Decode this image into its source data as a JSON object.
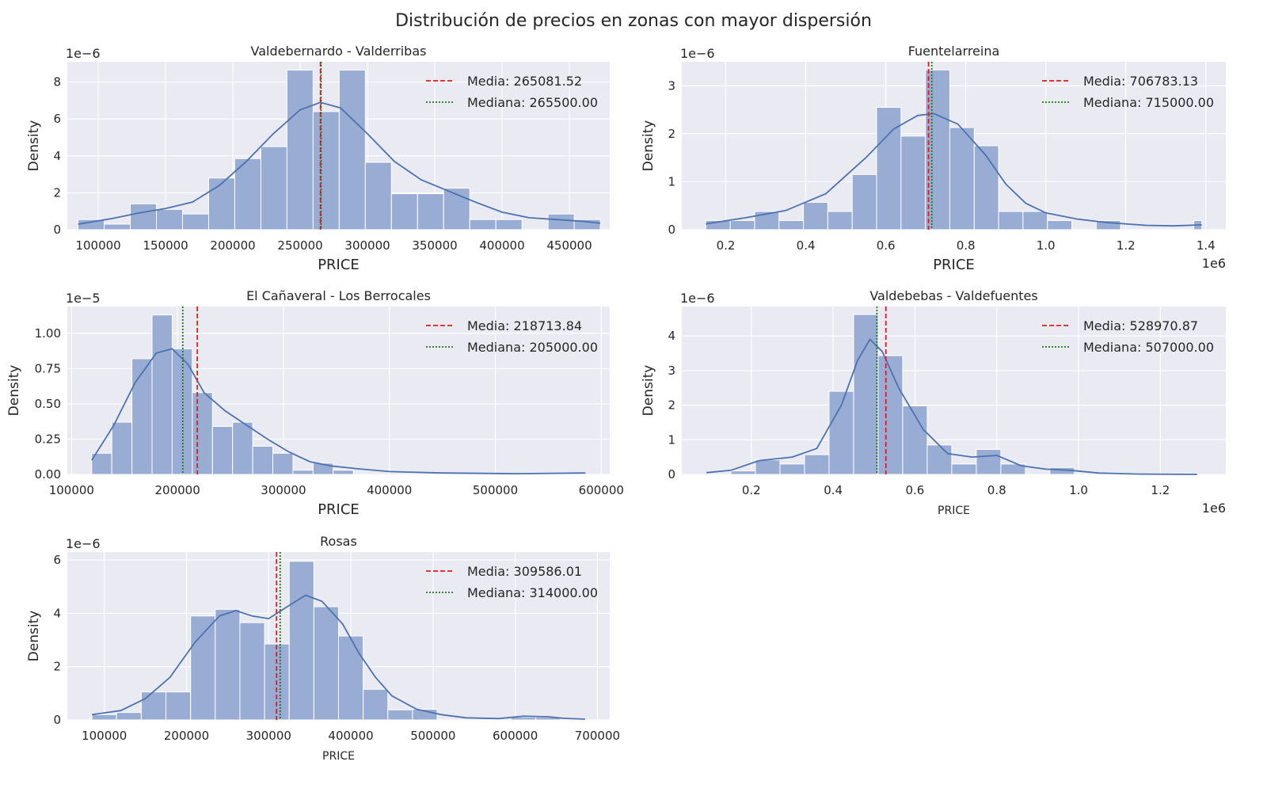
{
  "suptitle": "Distribución de precios en zonas con mayor dispersión",
  "colors": {
    "background": "#eaeaf2",
    "bar": "#99acd3",
    "bar_edge": "#ffffff",
    "kde": "#4c72b0",
    "grid": "#ffffff",
    "mean": "#e41a1c",
    "median": "#1a7a1a"
  },
  "chart_data": [
    {
      "type": "bar",
      "title": "Valdebernardo - Valderribas",
      "xlabel": "PRICE",
      "ylabel": "Density",
      "x_offset_text": "",
      "y_offset_text": "1e−6",
      "xlim": [
        77000,
        480000
      ],
      "ylim": [
        0,
        9.1
      ],
      "xticks": [
        100000,
        150000,
        200000,
        250000,
        300000,
        350000,
        400000,
        450000
      ],
      "xtick_labels": [
        "100000",
        "150000",
        "200000",
        "250000",
        "300000",
        "350000",
        "400000",
        "450000"
      ],
      "yticks": [
        0,
        2,
        4,
        6,
        8
      ],
      "ytick_labels": [
        "0",
        "2",
        "4",
        "6",
        "8"
      ],
      "bins": [
        [
          85000,
          104400,
          0.55
        ],
        [
          104400,
          123800,
          0.3
        ],
        [
          123800,
          143200,
          1.4
        ],
        [
          143200,
          162600,
          1.1
        ],
        [
          162600,
          182000,
          0.85
        ],
        [
          182000,
          201400,
          2.8
        ],
        [
          201400,
          220800,
          3.85
        ],
        [
          220800,
          240200,
          4.5
        ],
        [
          240200,
          259600,
          8.65
        ],
        [
          259600,
          279000,
          6.4
        ],
        [
          279000,
          298400,
          8.65
        ],
        [
          298400,
          317800,
          3.65
        ],
        [
          317800,
          337200,
          1.95
        ],
        [
          337200,
          356600,
          1.95
        ],
        [
          356600,
          376000,
          2.25
        ],
        [
          376000,
          395400,
          0.55
        ],
        [
          395400,
          414800,
          0.55
        ],
        [
          414800,
          434200,
          0
        ],
        [
          434200,
          453600,
          0.85
        ],
        [
          453600,
          473000,
          0.55
        ]
      ],
      "kde": [
        [
          85000,
          0.3
        ],
        [
          110000,
          0.6
        ],
        [
          130000,
          0.9
        ],
        [
          150000,
          1.15
        ],
        [
          170000,
          1.5
        ],
        [
          190000,
          2.4
        ],
        [
          210000,
          3.7
        ],
        [
          230000,
          5.2
        ],
        [
          250000,
          6.5
        ],
        [
          265000,
          6.9
        ],
        [
          280000,
          6.6
        ],
        [
          300000,
          5.2
        ],
        [
          320000,
          3.7
        ],
        [
          340000,
          2.7
        ],
        [
          360000,
          2.1
        ],
        [
          380000,
          1.5
        ],
        [
          400000,
          0.95
        ],
        [
          420000,
          0.65
        ],
        [
          440000,
          0.55
        ],
        [
          460000,
          0.45
        ],
        [
          473000,
          0.35
        ]
      ],
      "mean": 265081.52,
      "median": 265500.0,
      "legend": {
        "mean_label": "Media: 265081.52",
        "median_label": "Mediana: 265500.00",
        "position": "upper right"
      }
    },
    {
      "type": "bar",
      "title": "Fuentelarreina",
      "xlabel": "PRICE",
      "ylabel": "Density",
      "x_offset_text": "1e6",
      "y_offset_text": "1e−6",
      "xlim": [
        0.09,
        1.45
      ],
      "ylim": [
        0,
        3.5
      ],
      "xticks": [
        0.2,
        0.4,
        0.6,
        0.8,
        1.0,
        1.2,
        1.4
      ],
      "xtick_labels": [
        "0.2",
        "0.4",
        "0.6",
        "0.8",
        "1.0",
        "1.2",
        "1.4"
      ],
      "yticks": [
        0,
        1,
        2,
        3
      ],
      "ytick_labels": [
        "0",
        "1",
        "2",
        "3"
      ],
      "bins": [
        [
          0.15,
          0.211,
          0.19
        ],
        [
          0.211,
          0.272,
          0.19
        ],
        [
          0.272,
          0.333,
          0.38
        ],
        [
          0.333,
          0.394,
          0.19
        ],
        [
          0.394,
          0.455,
          0.57
        ],
        [
          0.455,
          0.516,
          0.38
        ],
        [
          0.516,
          0.577,
          1.15
        ],
        [
          0.577,
          0.638,
          2.55
        ],
        [
          0.638,
          0.699,
          1.95
        ],
        [
          0.699,
          0.76,
          3.33
        ],
        [
          0.76,
          0.821,
          2.13
        ],
        [
          0.821,
          0.882,
          1.75
        ],
        [
          0.882,
          0.943,
          0.38
        ],
        [
          0.943,
          1.004,
          0.38
        ],
        [
          1.004,
          1.065,
          0.19
        ],
        [
          1.065,
          1.126,
          0
        ],
        [
          1.126,
          1.187,
          0.19
        ],
        [
          1.187,
          1.248,
          0
        ],
        [
          1.248,
          1.309,
          0
        ],
        [
          1.309,
          1.37,
          0
        ],
        [
          1.37,
          1.39,
          0.19
        ]
      ],
      "kde": [
        [
          0.15,
          0.12
        ],
        [
          0.25,
          0.25
        ],
        [
          0.35,
          0.4
        ],
        [
          0.45,
          0.75
        ],
        [
          0.55,
          1.5
        ],
        [
          0.62,
          2.1
        ],
        [
          0.68,
          2.38
        ],
        [
          0.72,
          2.42
        ],
        [
          0.78,
          2.2
        ],
        [
          0.85,
          1.55
        ],
        [
          0.9,
          0.95
        ],
        [
          0.95,
          0.55
        ],
        [
          1.0,
          0.35
        ],
        [
          1.08,
          0.22
        ],
        [
          1.15,
          0.15
        ],
        [
          1.25,
          0.09
        ],
        [
          1.32,
          0.08
        ],
        [
          1.39,
          0.1
        ]
      ],
      "mean": 0.70678313,
      "median": 0.715,
      "legend": {
        "mean_label": "Media: 706783.13",
        "median_label": "Mediana: 715000.00",
        "position": "upper right"
      }
    },
    {
      "type": "bar",
      "title": "El Cañaveral - Los Berrocales",
      "xlabel": "PRICE",
      "ylabel": "Density",
      "x_offset_text": "",
      "y_offset_text": "1e−5",
      "xlim": [
        96000,
        608000
      ],
      "ylim": [
        0,
        1.19
      ],
      "xticks": [
        100000,
        200000,
        300000,
        400000,
        500000,
        600000
      ],
      "xtick_labels": [
        "100000",
        "200000",
        "300000",
        "400000",
        "500000",
        "600000"
      ],
      "yticks": [
        0,
        0.25,
        0.5,
        0.75,
        1.0
      ],
      "ytick_labels": [
        "0.00",
        "0.25",
        "0.50",
        "0.75",
        "1.00"
      ],
      "bins": [
        [
          119000,
          138000,
          0.15
        ],
        [
          138000,
          157000,
          0.37
        ],
        [
          157000,
          176000,
          0.82
        ],
        [
          176000,
          195000,
          1.13
        ],
        [
          195000,
          214000,
          0.89
        ],
        [
          214000,
          233000,
          0.58
        ],
        [
          233000,
          252000,
          0.34
        ],
        [
          252000,
          271000,
          0.37
        ],
        [
          271000,
          290000,
          0.2
        ],
        [
          290000,
          309000,
          0.15
        ],
        [
          309000,
          328000,
          0.03
        ],
        [
          328000,
          347000,
          0.08
        ],
        [
          347000,
          366000,
          0.03
        ],
        [
          366000,
          585000,
          0
        ]
      ],
      "kde": [
        [
          119000,
          0.1
        ],
        [
          140000,
          0.35
        ],
        [
          160000,
          0.65
        ],
        [
          180000,
          0.86
        ],
        [
          195000,
          0.89
        ],
        [
          210000,
          0.78
        ],
        [
          225000,
          0.58
        ],
        [
          245000,
          0.45
        ],
        [
          265000,
          0.35
        ],
        [
          285000,
          0.25
        ],
        [
          305000,
          0.16
        ],
        [
          325000,
          0.09
        ],
        [
          345000,
          0.06
        ],
        [
          370000,
          0.04
        ],
        [
          400000,
          0.02
        ],
        [
          450000,
          0.01
        ],
        [
          520000,
          0.005
        ],
        [
          585000,
          0.01
        ]
      ],
      "mean": 218713.84,
      "median": 205000.0,
      "legend": {
        "mean_label": "Media: 218713.84",
        "median_label": "Mediana: 205000.00",
        "position": "upper right"
      }
    },
    {
      "type": "bar",
      "title": "Valdebebas - Valdefuentes",
      "xlabel": "PRICE",
      "ylabel": "Density",
      "x_offset_text": "1e6",
      "y_offset_text": "1e−6",
      "xlim": [
        0.03,
        1.36
      ],
      "ylim": [
        0,
        4.85
      ],
      "xticks": [
        0.2,
        0.4,
        0.6,
        0.8,
        1.0,
        1.2
      ],
      "xtick_labels": [
        "0.2",
        "0.4",
        "0.6",
        "0.8",
        "1.0",
        "1.2"
      ],
      "yticks": [
        0,
        1,
        2,
        3,
        4
      ],
      "ytick_labels": [
        "0",
        "1",
        "2",
        "3",
        "4"
      ],
      "bins": [
        [
          0.09,
          0.15,
          0
        ],
        [
          0.15,
          0.21,
          0.1
        ],
        [
          0.21,
          0.27,
          0.42
        ],
        [
          0.27,
          0.33,
          0.3
        ],
        [
          0.33,
          0.39,
          0.57
        ],
        [
          0.39,
          0.45,
          2.4
        ],
        [
          0.45,
          0.51,
          4.62
        ],
        [
          0.51,
          0.57,
          3.43
        ],
        [
          0.57,
          0.63,
          1.98
        ],
        [
          0.63,
          0.69,
          0.85
        ],
        [
          0.69,
          0.75,
          0.3
        ],
        [
          0.75,
          0.81,
          0.72
        ],
        [
          0.81,
          0.87,
          0.3
        ],
        [
          0.87,
          0.93,
          0
        ],
        [
          0.93,
          0.99,
          0.2
        ],
        [
          0.99,
          1.05,
          0
        ],
        [
          1.05,
          1.11,
          0
        ],
        [
          1.11,
          1.17,
          0
        ],
        [
          1.17,
          1.23,
          0
        ],
        [
          1.23,
          1.29,
          0
        ]
      ],
      "kde": [
        [
          0.09,
          0.05
        ],
        [
          0.15,
          0.12
        ],
        [
          0.22,
          0.4
        ],
        [
          0.3,
          0.5
        ],
        [
          0.36,
          0.75
        ],
        [
          0.42,
          2.0
        ],
        [
          0.46,
          3.3
        ],
        [
          0.49,
          3.9
        ],
        [
          0.52,
          3.55
        ],
        [
          0.56,
          2.5
        ],
        [
          0.62,
          1.3
        ],
        [
          0.68,
          0.6
        ],
        [
          0.74,
          0.5
        ],
        [
          0.8,
          0.55
        ],
        [
          0.86,
          0.25
        ],
        [
          0.92,
          0.15
        ],
        [
          0.98,
          0.12
        ],
        [
          1.05,
          0.04
        ],
        [
          1.15,
          0.01
        ],
        [
          1.29,
          0
        ]
      ],
      "mean": 0.52897087,
      "median": 0.507,
      "legend": {
        "mean_label": "Media: 528970.87",
        "median_label": "Mediana: 507000.00",
        "position": "upper right"
      }
    },
    {
      "type": "bar",
      "title": "Rosas",
      "xlabel": "PRICE",
      "ylabel": "Density",
      "x_offset_text": "",
      "y_offset_text": "1e−6",
      "xlim": [
        55000,
        715000
      ],
      "ylim": [
        0,
        6.3
      ],
      "xticks": [
        100000,
        200000,
        300000,
        400000,
        500000,
        600000,
        700000
      ],
      "xtick_labels": [
        "100000",
        "200000",
        "300000",
        "400000",
        "500000",
        "600000",
        "700000"
      ],
      "yticks": [
        0,
        2,
        4,
        6
      ],
      "ytick_labels": [
        "0",
        "2",
        "4",
        "6"
      ],
      "bins": [
        [
          85000,
          115000,
          0.2
        ],
        [
          115000,
          145000,
          0.28
        ],
        [
          145000,
          175000,
          1.05
        ],
        [
          175000,
          205000,
          1.05
        ],
        [
          205000,
          235000,
          3.9
        ],
        [
          235000,
          265000,
          4.15
        ],
        [
          265000,
          295000,
          3.65
        ],
        [
          295000,
          325000,
          2.85
        ],
        [
          325000,
          355000,
          5.95
        ],
        [
          355000,
          385000,
          4.25
        ],
        [
          385000,
          415000,
          3.15
        ],
        [
          415000,
          445000,
          1.15
        ],
        [
          445000,
          475000,
          0.38
        ],
        [
          475000,
          505000,
          0.4
        ],
        [
          505000,
          535000,
          0
        ],
        [
          535000,
          565000,
          0
        ],
        [
          565000,
          595000,
          0
        ],
        [
          595000,
          625000,
          0.1
        ],
        [
          625000,
          655000,
          0.1
        ],
        [
          655000,
          685000,
          0
        ]
      ],
      "kde": [
        [
          85000,
          0.2
        ],
        [
          120000,
          0.35
        ],
        [
          150000,
          0.8
        ],
        [
          180000,
          1.6
        ],
        [
          210000,
          2.9
        ],
        [
          240000,
          3.9
        ],
        [
          260000,
          4.1
        ],
        [
          280000,
          3.9
        ],
        [
          300000,
          3.8
        ],
        [
          320000,
          4.2
        ],
        [
          345000,
          4.68
        ],
        [
          365000,
          4.45
        ],
        [
          390000,
          3.6
        ],
        [
          410000,
          2.5
        ],
        [
          430000,
          1.6
        ],
        [
          450000,
          0.9
        ],
        [
          480000,
          0.4
        ],
        [
          510000,
          0.2
        ],
        [
          540000,
          0.08
        ],
        [
          580000,
          0.05
        ],
        [
          610000,
          0.14
        ],
        [
          640000,
          0.12
        ],
        [
          660000,
          0.06
        ],
        [
          685000,
          0.03
        ]
      ],
      "mean": 309586.01,
      "median": 314000.0,
      "legend": {
        "mean_label": "Media: 309586.01",
        "median_label": "Mediana: 314000.00",
        "position": "upper right"
      }
    }
  ]
}
